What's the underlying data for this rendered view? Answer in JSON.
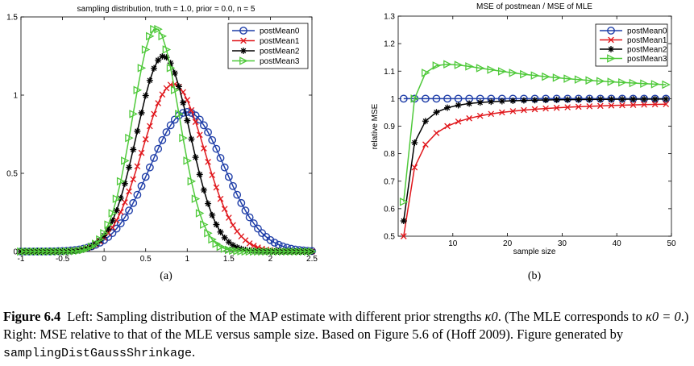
{
  "caption": {
    "lead": "Figure 6.4",
    "part1": "Left: Sampling distribution of the MAP estimate with different prior strengths ",
    "kappa0": "κ0",
    "part2": ". (The MLE corresponds to ",
    "kappa_eq": "κ0 = 0",
    "part3": ".) Right: MSE relative to that of the MLE versus sample size. Based on Figure 5.6 of (Hoff 2009). Figure generated by ",
    "code": "samplingDistGaussShrinkage",
    "part4": "."
  },
  "colors": {
    "postMean0": "#1f3ea8",
    "postMean1": "#e0161b",
    "postMean2": "#000000",
    "postMean3": "#4fc93a"
  },
  "chart_data": [
    {
      "type": "line",
      "panel_label": "(a)",
      "title": "sampling distribution, truth = 1.0, prior = 0.0, n = 5",
      "xlabel": "",
      "ylabel": "",
      "xlim": [
        -1,
        2.5
      ],
      "ylim": [
        0,
        1.5
      ],
      "xticks": [
        -1,
        -0.5,
        0,
        0.5,
        1,
        1.5,
        2,
        2.5
      ],
      "xtick_labels": [
        "-1",
        "-0.5",
        "0",
        "0.5",
        "1",
        "1.5",
        "2",
        "2.5"
      ],
      "yticks": [
        0,
        0.5,
        1,
        1.5
      ],
      "ytick_labels": [
        "0",
        "0.5",
        "1",
        "1.5"
      ],
      "legend_position": "top-right",
      "grid": false,
      "series": [
        {
          "name": "postMean0",
          "marker": "circle",
          "curve": {
            "mean": 1.0,
            "sd": 0.4472,
            "scale": 1.0
          }
        },
        {
          "name": "postMean1",
          "marker": "x",
          "curve": {
            "mean": 0.8333,
            "sd": 0.3727,
            "scale": 1.0
          }
        },
        {
          "name": "postMean2",
          "marker": "star",
          "curve": {
            "mean": 0.7143,
            "sd": 0.3194,
            "scale": 1.0
          }
        },
        {
          "name": "postMean3",
          "marker": "triangle-right",
          "curve": {
            "mean": 0.625,
            "sd": 0.2795,
            "scale": 1.0
          }
        }
      ],
      "x_start": -1,
      "x_end": 2.5,
      "x_step": 0.05
    },
    {
      "type": "line",
      "panel_label": "(b)",
      "title": "MSE of postmean / MSE of MLE",
      "xlabel": "sample size",
      "ylabel": "relative MSE",
      "xlim": [
        0,
        50
      ],
      "ylim": [
        0.5,
        1.3
      ],
      "xticks": [
        10,
        20,
        30,
        40,
        50
      ],
      "xtick_labels": [
        "10",
        "20",
        "30",
        "40",
        "50"
      ],
      "yticks": [
        0.5,
        0.6,
        0.7,
        0.8,
        0.9,
        1,
        1.1,
        1.2,
        1.3
      ],
      "ytick_labels": [
        "0.5",
        "0.6",
        "0.7",
        "0.8",
        "0.9",
        "1",
        "1.1",
        "1.2",
        "1.3"
      ],
      "legend_position": "top-right",
      "grid": false,
      "x": [
        1,
        3,
        5,
        7,
        9,
        11,
        13,
        15,
        17,
        19,
        21,
        23,
        25,
        27,
        29,
        31,
        33,
        35,
        37,
        39,
        41,
        43,
        45,
        47,
        49
      ],
      "series": [
        {
          "name": "postMean0",
          "marker": "circle",
          "kappa": 0
        },
        {
          "name": "postMean1",
          "marker": "x",
          "kappa": 1
        },
        {
          "name": "postMean2",
          "marker": "star",
          "kappa": 2
        },
        {
          "name": "postMean3",
          "marker": "triangle-right",
          "kappa": 3
        }
      ],
      "truth": 1.0,
      "prior_mean": 0.0
    }
  ]
}
